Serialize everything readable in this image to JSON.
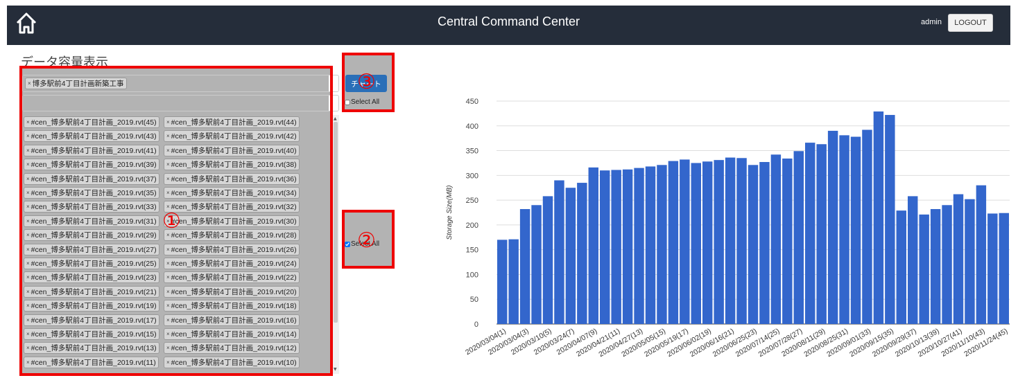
{
  "header": {
    "title": "Central Command Center",
    "user": "admin",
    "logout_label": "LOGOUT"
  },
  "panel": {
    "heading": "データ容量表示",
    "project_tag": "博多駅前4丁目計画新築工事",
    "chart_button": "チャート",
    "select_all_1": "Select All",
    "select_all_2": "Select All",
    "files_left": [
      "#cen_博多駅前4丁目計画_2019.rvt(45)",
      "#cen_博多駅前4丁目計画_2019.rvt(43)",
      "#cen_博多駅前4丁目計画_2019.rvt(41)",
      "#cen_博多駅前4丁目計画_2019.rvt(39)",
      "#cen_博多駅前4丁目計画_2019.rvt(37)",
      "#cen_博多駅前4丁目計画_2019.rvt(35)",
      "#cen_博多駅前4丁目計画_2019.rvt(33)",
      "#cen_博多駅前4丁目計画_2019.rvt(31)",
      "#cen_博多駅前4丁目計画_2019.rvt(29)",
      "#cen_博多駅前4丁目計画_2019.rvt(27)",
      "#cen_博多駅前4丁目計画_2019.rvt(25)",
      "#cen_博多駅前4丁目計画_2019.rvt(23)",
      "#cen_博多駅前4丁目計画_2019.rvt(21)",
      "#cen_博多駅前4丁目計画_2019.rvt(19)",
      "#cen_博多駅前4丁目計画_2019.rvt(17)",
      "#cen_博多駅前4丁目計画_2019.rvt(15)",
      "#cen_博多駅前4丁目計画_2019.rvt(13)",
      "#cen_博多駅前4丁目計画_2019.rvt(11)"
    ],
    "files_right": [
      "#cen_博多駅前4丁目計画_2019.rvt(44)",
      "#cen_博多駅前4丁目計画_2019.rvt(42)",
      "#cen_博多駅前4丁目計画_2019.rvt(40)",
      "#cen_博多駅前4丁目計画_2019.rvt(38)",
      "#cen_博多駅前4丁目計画_2019.rvt(36)",
      "#cen_博多駅前4丁目計画_2019.rvt(34)",
      "#cen_博多駅前4丁目計画_2019.rvt(32)",
      "#cen_博多駅前4丁目計画_2019.rvt(30)",
      "#cen_博多駅前4丁目計画_2019.rvt(28)",
      "#cen_博多駅前4丁目計画_2019.rvt(26)",
      "#cen_博多駅前4丁目計画_2019.rvt(24)",
      "#cen_博多駅前4丁目計画_2019.rvt(22)",
      "#cen_博多駅前4丁目計画_2019.rvt(20)",
      "#cen_博多駅前4丁目計画_2019.rvt(18)",
      "#cen_博多駅前4丁目計画_2019.rvt(16)",
      "#cen_博多駅前4丁目計画_2019.rvt(14)",
      "#cen_博多駅前4丁目計画_2019.rvt(12)",
      "#cen_博多駅前4丁目計画_2019.rvt(10)"
    ]
  },
  "annotations": {
    "marker_1": "①",
    "marker_2": "②",
    "marker_3": "③",
    "color": "#e00000"
  },
  "chart_data": {
    "type": "bar",
    "ylabel": "Storage Size(MB)",
    "ylim": [
      0,
      450
    ],
    "yticks": [
      0,
      50,
      100,
      150,
      200,
      250,
      300,
      350,
      400,
      450
    ],
    "grid": true,
    "bar_color": "#3366cc",
    "xtick_labels": [
      "2020/03/04(1)",
      "2020/03/04(3)",
      "2020/03/10(5)",
      "2020/03/24(7)",
      "2020/04/07(9)",
      "2020/04/21(11)",
      "2020/04/27(13)",
      "2020/05/05(15)",
      "2020/05/19(17)",
      "2020/06/02(19)",
      "2020/06/16(21)",
      "2020/06/25(23)",
      "2020/07/14(25)",
      "2020/07/28(27)",
      "2020/08/11(29)",
      "2020/08/25(31)",
      "2020/09/01(33)",
      "2020/09/15(35)",
      "2020/09/29(37)",
      "2020/10/13(39)",
      "2020/10/27(41)",
      "2020/11/10(43)",
      "2020/11/24(45)"
    ],
    "values": [
      170,
      171,
      232,
      240,
      258,
      290,
      275,
      285,
      316,
      310,
      311,
      312,
      315,
      318,
      321,
      329,
      332,
      325,
      328,
      331,
      336,
      335,
      321,
      327,
      342,
      334,
      349,
      366,
      363,
      390,
      381,
      378,
      392,
      429,
      422,
      229,
      258,
      221,
      232,
      240,
      262,
      252,
      280,
      223,
      224
    ]
  }
}
